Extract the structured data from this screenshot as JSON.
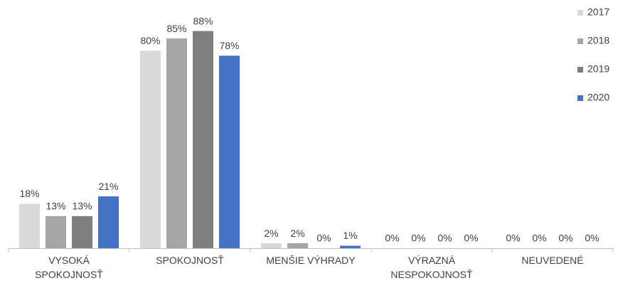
{
  "chart_data": {
    "type": "bar",
    "categories": [
      "VYSOKÁ\nSPOKOJNOSŤ",
      "SPOKOJNOSŤ",
      "MENŠIE VÝHRADY",
      "VÝRAZNÁ\nNESPOKOJNOSŤ",
      "NEUVEDENÉ"
    ],
    "series": [
      {
        "name": "2017",
        "color": "#d9d9d9",
        "values": [
          18,
          80,
          2,
          0,
          0
        ],
        "value_labels": [
          "18%",
          "80%",
          "2%",
          "0%",
          "0%"
        ]
      },
      {
        "name": "2018",
        "color": "#a6a6a6",
        "values": [
          13,
          85,
          2,
          0,
          0
        ],
        "value_labels": [
          "13%",
          "85%",
          "2%",
          "0%",
          "0%"
        ]
      },
      {
        "name": "2019",
        "color": "#7f7f7f",
        "values": [
          13,
          88,
          0,
          0,
          0
        ],
        "value_labels": [
          "13%",
          "88%",
          "0%",
          "0%",
          "0%"
        ]
      },
      {
        "name": "2020",
        "color": "#4472c4",
        "values": [
          21,
          78,
          1,
          0,
          0
        ],
        "value_labels": [
          "21%",
          "78%",
          "1%",
          "0%",
          "0%"
        ]
      }
    ],
    "ylim": [
      0,
      100
    ],
    "legend": "right"
  }
}
